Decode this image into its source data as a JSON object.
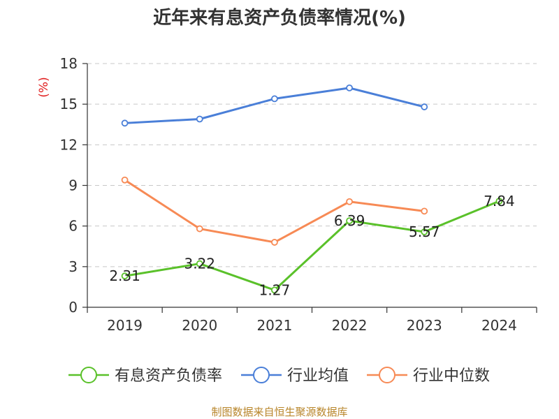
{
  "chart_data": {
    "type": "line",
    "title": "近年来有息资产负债率情况(%)",
    "ylabel": "(%)",
    "categories": [
      "2019",
      "2020",
      "2021",
      "2022",
      "2023",
      "2024"
    ],
    "ylim": [
      0,
      18
    ],
    "yticks": [
      0,
      3,
      6,
      9,
      12,
      15,
      18
    ],
    "grid": true,
    "legend_position": "bottom",
    "series": [
      {
        "name": "有息资产负债率",
        "color": "#5ac12a",
        "values": [
          2.31,
          3.22,
          1.27,
          6.39,
          5.57,
          7.84
        ],
        "labels": [
          "2.31",
          "3.22",
          "1.27",
          "6.39",
          "5.57",
          "7.84"
        ]
      },
      {
        "name": "行业均值",
        "color": "#4a7fd8",
        "values": [
          13.6,
          13.9,
          15.4,
          16.2,
          14.8,
          null
        ]
      },
      {
        "name": "行业中位数",
        "color": "#f78a55",
        "values": [
          9.4,
          5.8,
          4.8,
          7.8,
          7.1,
          null
        ]
      }
    ],
    "source": "制图数据来自恒生聚源数据库"
  }
}
